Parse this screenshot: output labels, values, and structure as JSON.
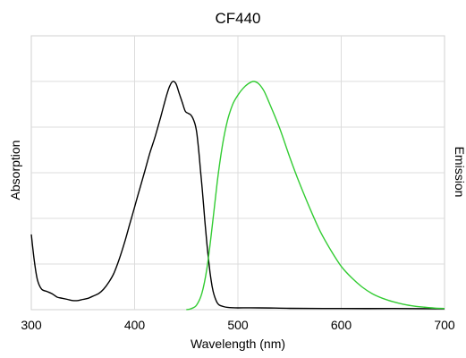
{
  "chart_data": {
    "type": "line",
    "title": "CF440",
    "xlabel": "Wavelength (nm)",
    "ylabel_left": "Absorption",
    "ylabel_right": "Emission",
    "xlim": [
      300,
      700
    ],
    "ylim": [
      0,
      1
    ],
    "x_ticks": [
      300,
      400,
      500,
      600,
      700
    ],
    "y_gridlines": [
      0.2,
      0.4,
      0.6,
      0.8,
      1.0
    ],
    "y_tick_labels_shown": false,
    "grid": true,
    "legend": "none",
    "series": [
      {
        "color": "#000000",
        "x": [
          300,
          303,
          306,
          310,
          315,
          320,
          325,
          330,
          335,
          340,
          345,
          350,
          355,
          360,
          365,
          370,
          375,
          380,
          385,
          390,
          395,
          400,
          405,
          410,
          415,
          420,
          425,
          428,
          431,
          434,
          437,
          440,
          443,
          446,
          449,
          452,
          455,
          458,
          460,
          462,
          464,
          466,
          468,
          470,
          472,
          474,
          476,
          478,
          480,
          482,
          485,
          490,
          500,
          520,
          550,
          600,
          650,
          700
        ],
        "y": [
          0.33,
          0.21,
          0.13,
          0.09,
          0.08,
          0.07,
          0.055,
          0.05,
          0.045,
          0.04,
          0.04,
          0.045,
          0.05,
          0.06,
          0.07,
          0.09,
          0.12,
          0.16,
          0.22,
          0.29,
          0.37,
          0.45,
          0.53,
          0.61,
          0.69,
          0.76,
          0.84,
          0.89,
          0.94,
          0.98,
          1.0,
          0.99,
          0.95,
          0.91,
          0.87,
          0.86,
          0.85,
          0.82,
          0.78,
          0.7,
          0.6,
          0.5,
          0.39,
          0.29,
          0.2,
          0.13,
          0.08,
          0.05,
          0.03,
          0.02,
          0.015,
          0.01,
          0.008,
          0.008,
          0.006,
          0.005,
          0.005,
          0.004
        ]
      },
      {
        "color": "#33cc33",
        "x": [
          450,
          455,
          460,
          465,
          470,
          475,
          480,
          485,
          490,
          495,
          500,
          505,
          510,
          515,
          520,
          525,
          530,
          540,
          550,
          560,
          570,
          580,
          590,
          600,
          610,
          620,
          630,
          640,
          650,
          660,
          670,
          680,
          690,
          700
        ],
        "y": [
          0.0,
          0.005,
          0.02,
          0.07,
          0.18,
          0.36,
          0.56,
          0.72,
          0.83,
          0.9,
          0.94,
          0.97,
          0.99,
          1.0,
          0.99,
          0.96,
          0.91,
          0.8,
          0.67,
          0.55,
          0.44,
          0.34,
          0.26,
          0.19,
          0.14,
          0.1,
          0.07,
          0.05,
          0.035,
          0.024,
          0.016,
          0.011,
          0.007,
          0.005
        ]
      }
    ]
  }
}
